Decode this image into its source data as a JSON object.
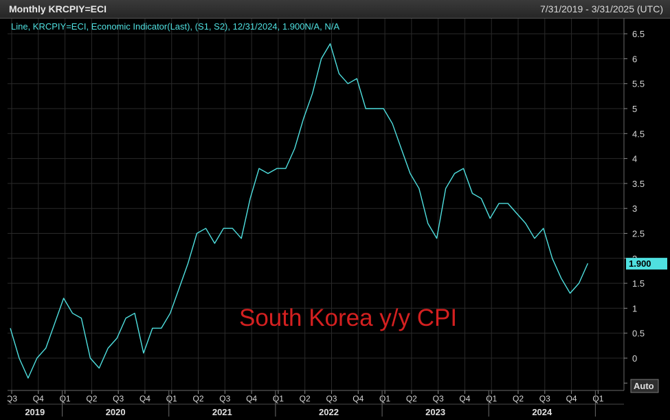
{
  "header": {
    "title": "Monthly KRCPIY=ECI",
    "date_range": "7/31/2019 - 3/31/2025 (UTC)"
  },
  "legend": {
    "label": "Line, KRCPIY=ECI, Economic Indicator(Last), (S1, S2), 12/31/2024, 1.900N/A, N/A"
  },
  "annotation": {
    "text": "South Korea y/y CPI"
  },
  "buttons": {
    "auto_label": "Auto"
  },
  "colors": {
    "background": "#000000",
    "line": "#4fe0e0",
    "annotation": "#d42020",
    "grid": "#2a2a2a",
    "last_value_tag": "#4fe0e0"
  },
  "chart_data": {
    "type": "line",
    "x": [
      "2019-07",
      "2019-08",
      "2019-09",
      "2019-10",
      "2019-11",
      "2019-12",
      "2020-01",
      "2020-02",
      "2020-03",
      "2020-04",
      "2020-05",
      "2020-06",
      "2020-07",
      "2020-08",
      "2020-09",
      "2020-10",
      "2020-11",
      "2020-12",
      "2021-01",
      "2021-02",
      "2021-03",
      "2021-04",
      "2021-05",
      "2021-06",
      "2021-07",
      "2021-08",
      "2021-09",
      "2021-10",
      "2021-11",
      "2021-12",
      "2022-01",
      "2022-02",
      "2022-03",
      "2022-04",
      "2022-05",
      "2022-06",
      "2022-07",
      "2022-08",
      "2022-09",
      "2022-10",
      "2022-11",
      "2022-12",
      "2023-01",
      "2023-02",
      "2023-03",
      "2023-04",
      "2023-05",
      "2023-06",
      "2023-07",
      "2023-08",
      "2023-09",
      "2023-10",
      "2023-11",
      "2023-12",
      "2024-01",
      "2024-02",
      "2024-03",
      "2024-04",
      "2024-05",
      "2024-06",
      "2024-07",
      "2024-08",
      "2024-09",
      "2024-10",
      "2024-11",
      "2024-12"
    ],
    "series": [
      {
        "values": [
          0.6,
          0.0,
          -0.4,
          0.0,
          0.2,
          0.7,
          1.2,
          0.9,
          0.8,
          0.0,
          -0.2,
          0.2,
          0.4,
          0.8,
          0.9,
          0.1,
          0.6,
          0.6,
          0.9,
          1.4,
          1.9,
          2.5,
          2.6,
          2.3,
          2.6,
          2.6,
          2.4,
          3.2,
          3.8,
          3.7,
          3.8,
          3.8,
          4.2,
          4.8,
          5.3,
          6.0,
          6.3,
          5.7,
          5.5,
          5.6,
          5.0,
          5.0,
          5.0,
          4.7,
          4.2,
          3.7,
          3.4,
          2.7,
          2.4,
          3.4,
          3.7,
          3.8,
          3.3,
          3.2,
          2.8,
          3.1,
          3.1,
          2.9,
          2.7,
          2.4,
          2.6,
          2.0,
          1.6,
          1.3,
          1.5,
          1.9
        ]
      }
    ],
    "last_value_label": "1.900",
    "ylim": [
      -0.55,
      6.85
    ],
    "y_ticks": [
      "-0",
      "0",
      "0.5",
      "1",
      "1.5",
      "2",
      "2.5",
      "3",
      "3.5",
      "4",
      "4.5",
      "5",
      "5.5",
      "6",
      "6.5"
    ],
    "quarter_labels": [
      "Q3",
      "Q4",
      "Q1",
      "Q2",
      "Q3",
      "Q4",
      "Q1",
      "Q2",
      "Q3",
      "Q4",
      "Q1",
      "Q2",
      "Q3",
      "Q4",
      "Q1",
      "Q2",
      "Q3",
      "Q4",
      "Q1",
      "Q2",
      "Q3",
      "Q4",
      "Q1"
    ],
    "year_labels": [
      "2019",
      "2020",
      "2021",
      "2022",
      "2023",
      "2024"
    ],
    "grid": true,
    "legend_position": "top-left"
  }
}
